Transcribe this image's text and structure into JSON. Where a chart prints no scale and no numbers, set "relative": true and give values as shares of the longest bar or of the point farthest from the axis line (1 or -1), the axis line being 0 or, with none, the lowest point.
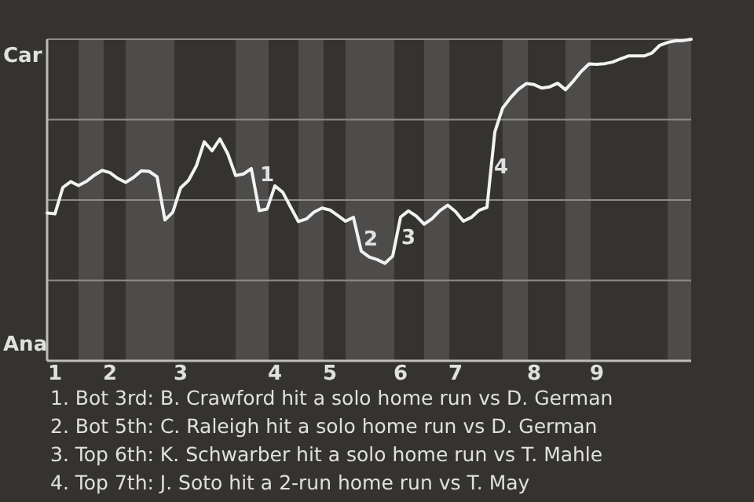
{
  "chart_data": {
    "type": "line",
    "relative": true,
    "categories": [
      null,
      "1",
      null,
      null,
      null,
      null,
      null,
      null,
      "2",
      null,
      null,
      null,
      null,
      null,
      null,
      null,
      null,
      "3",
      null,
      null,
      null,
      null,
      null,
      null,
      null,
      null,
      null,
      null,
      null,
      "4",
      null,
      null,
      null,
      null,
      null,
      null,
      "5",
      null,
      null,
      null,
      null,
      null,
      null,
      null,
      null,
      "6",
      null,
      null,
      null,
      null,
      null,
      null,
      "7",
      null,
      null,
      null,
      null,
      null,
      null,
      null,
      null,
      null,
      "8",
      null,
      null,
      null,
      null,
      null,
      null,
      null,
      "9",
      null,
      null,
      null,
      null,
      null,
      null,
      null,
      null,
      null,
      null,
      null,
      null
    ],
    "series": [
      {
        "color": "#f2f2f2",
        "values": [
          0.46,
          0.457,
          0.539,
          0.557,
          0.545,
          0.558,
          0.577,
          0.592,
          0.585,
          0.567,
          0.555,
          0.57,
          0.591,
          0.589,
          0.572,
          0.438,
          0.462,
          0.538,
          0.561,
          0.606,
          0.681,
          0.653,
          0.69,
          0.644,
          0.576,
          0.581,
          0.598,
          0.467,
          0.472,
          0.544,
          0.524,
          0.478,
          0.433,
          0.441,
          0.463,
          0.475,
          0.469,
          0.452,
          0.434,
          0.446,
          0.341,
          0.323,
          0.315,
          0.303,
          0.326,
          0.447,
          0.466,
          0.45,
          0.425,
          0.442,
          0.467,
          0.484,
          0.464,
          0.434,
          0.446,
          0.468,
          0.477,
          0.711,
          0.786,
          0.818,
          0.844,
          0.862,
          0.859,
          0.848,
          0.852,
          0.863,
          0.843,
          0.87,
          0.9,
          0.923,
          0.922,
          0.924,
          0.929,
          0.939,
          0.948,
          0.948,
          0.948,
          0.957,
          0.981,
          0.99,
          0.995,
          0.996,
          1.0
        ]
      }
    ],
    "marker": "none",
    "line_style": "solid",
    "ref_lines": [
      {
        "axis": "y",
        "value": 0.25,
        "color": "#8e8c8a"
      },
      {
        "axis": "y",
        "value": 0.5,
        "color": "#8e8c8a"
      },
      {
        "axis": "y",
        "value": 0.75,
        "color": "#8e8c8a"
      },
      {
        "axis": "y",
        "value": 1,
        "color": "#8e8c8a"
      }
    ],
    "annotations": [
      "Car",
      "Ana",
      "1",
      "2",
      "3",
      "4",
      "1. Bot 3rd: B. Crawford hit a solo home run vs D. German",
      "2. Bot 5th: C. Raleigh hit a solo home run vs D. German",
      "3. Top 6th: K. Schwarber hit a solo home run vs T. Mahle",
      "4. Top 7th: J. Soto hit a 2-run home run vs T. May"
    ]
  }
}
